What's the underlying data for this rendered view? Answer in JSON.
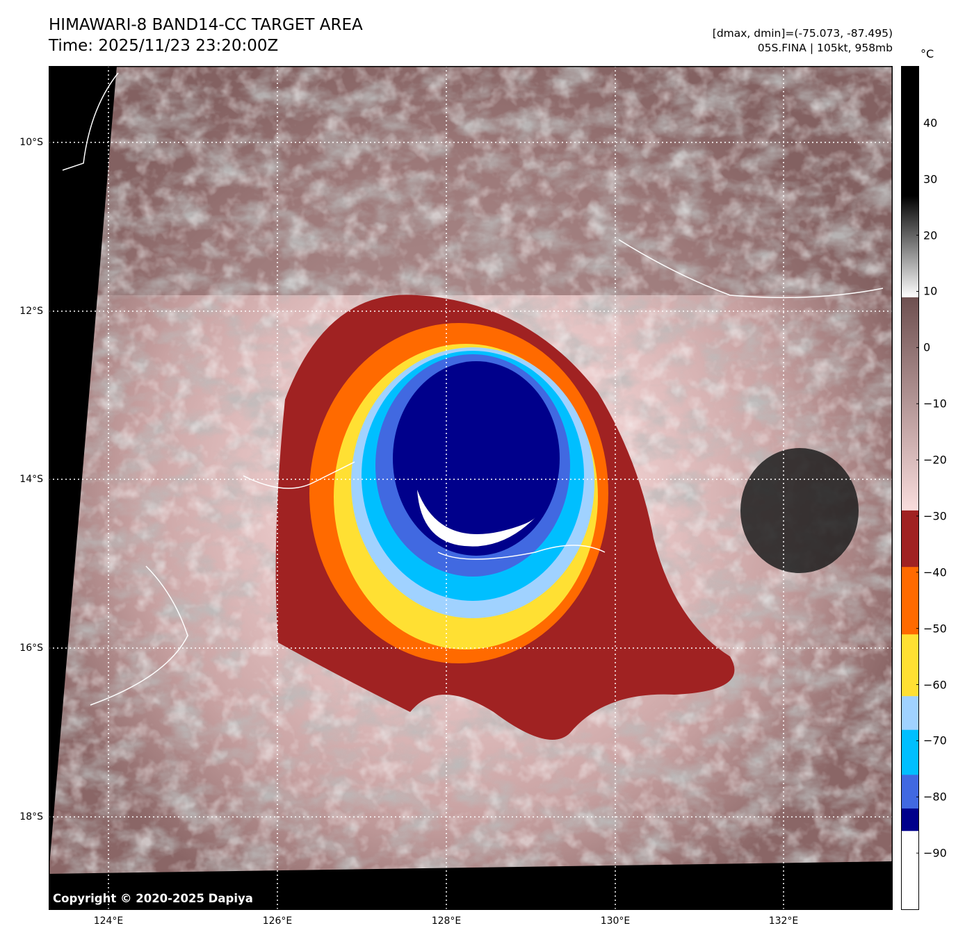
{
  "header": {
    "title": "HIMAWARI-8 BAND14-CC TARGET AREA",
    "time": "Time: 2025/11/23 23:20:00Z",
    "range": "[dmax, dmin]=(-75.073, -87.495)",
    "storm": "05S.FINA | 105kt, 958mb"
  },
  "map": {
    "lat_labels": [
      "10°S",
      "12°S",
      "14°S",
      "16°S",
      "18°S"
    ],
    "lon_labels": [
      "124°E",
      "126°E",
      "128°E",
      "130°E",
      "132°E"
    ],
    "copyright": "Copyright © 2020-2025 Dapiya",
    "storm_center": {
      "lat": -14.0,
      "lon": 128.2
    }
  },
  "colorbar": {
    "unit": "°C",
    "range": [
      -100,
      50
    ],
    "ticks": [
      "40",
      "30",
      "20",
      "10",
      "0",
      "−10",
      "−20",
      "−30",
      "−40",
      "−50",
      "−60",
      "−70",
      "−80",
      "−90"
    ],
    "tick_values": [
      40,
      30,
      20,
      10,
      0,
      -10,
      -20,
      -30,
      -40,
      -50,
      -60,
      -70,
      -80,
      -90
    ],
    "segments": [
      {
        "from": -100,
        "to": -86,
        "color": "#ffffff"
      },
      {
        "from": -86,
        "to": -82,
        "color": "#00008b"
      },
      {
        "from": -82,
        "to": -76,
        "color": "#4169e1"
      },
      {
        "from": -76,
        "to": -68,
        "color": "#00bfff"
      },
      {
        "from": -68,
        "to": -62,
        "color": "#a0d2ff"
      },
      {
        "from": -62,
        "to": -51,
        "color": "#ffe033"
      },
      {
        "from": -51,
        "to": -39,
        "color": "#ff6a00"
      },
      {
        "from": -39,
        "to": -29,
        "color": "#a02222"
      }
    ],
    "gradients": [
      {
        "from": -29,
        "to": 9,
        "color_low": "#fadddd",
        "color_high": "#6e5050"
      },
      {
        "from": 9,
        "to": 27,
        "color_low": "#ffffff",
        "color_high": "#000000"
      },
      {
        "from": 27,
        "to": 50,
        "color_low": "#000000",
        "color_high": "#000000"
      }
    ]
  }
}
